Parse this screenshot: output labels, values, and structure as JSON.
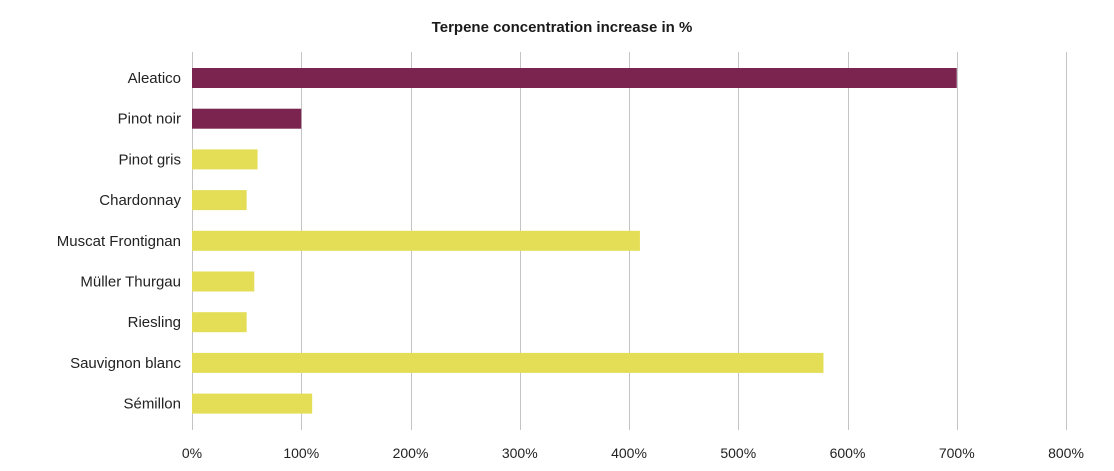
{
  "chart_data": {
    "type": "bar",
    "orientation": "horizontal",
    "title": "Terpene concentration increase in %",
    "xlabel": "",
    "ylabel": "",
    "categories": [
      "Aleatico",
      "Pinot noir",
      "Pinot gris",
      "Chardonnay",
      "Muscat Frontignan",
      "Müller Thurgau",
      "Riesling",
      "Sauvignon blanc",
      "Sémillon"
    ],
    "values": [
      700,
      100,
      60,
      50,
      410,
      57,
      50,
      578,
      110
    ],
    "bar_colors": [
      "#7b2450",
      "#7b2450",
      "#e3de55",
      "#e3de55",
      "#e3de55",
      "#e3de55",
      "#e3de55",
      "#e3de55",
      "#e3de55"
    ],
    "xlim": [
      0,
      800
    ],
    "xticks": [
      0,
      100,
      200,
      300,
      400,
      500,
      600,
      700,
      800
    ],
    "xtick_labels": [
      "0%",
      "100%",
      "200%",
      "300%",
      "400%",
      "500%",
      "600%",
      "700%",
      "800%"
    ],
    "grid": true,
    "legend": "none"
  }
}
